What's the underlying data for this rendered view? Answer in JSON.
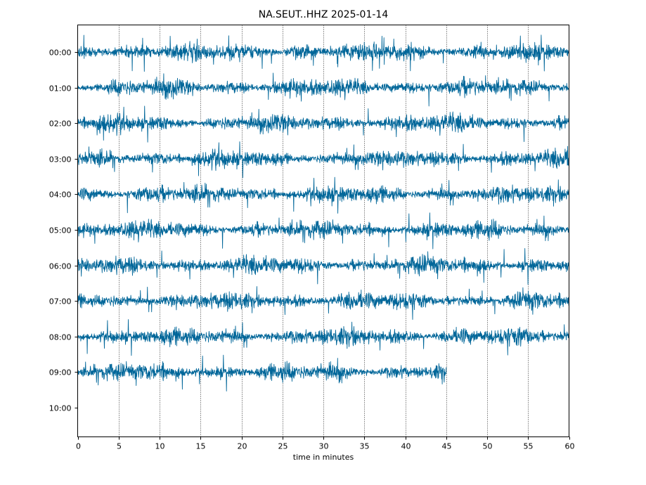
{
  "chart_data": {
    "type": "line",
    "title": "NA.SEUT..HHZ 2025-01-14",
    "xlabel": "time in minutes",
    "ylabel": "",
    "xlim": [
      0,
      60
    ],
    "x_ticks": [
      0,
      5,
      10,
      15,
      20,
      25,
      30,
      35,
      40,
      45,
      50,
      55,
      60
    ],
    "x_tick_labels": [
      "0",
      "5",
      "10",
      "15",
      "20",
      "25",
      "30",
      "35",
      "40",
      "45",
      "50",
      "55",
      "60"
    ],
    "y_tick_labels": [
      "00:00",
      "01:00",
      "02:00",
      "03:00",
      "04:00",
      "05:00",
      "06:00",
      "07:00",
      "08:00",
      "09:00",
      "10:00"
    ],
    "grid": "vertical dotted at each x tick",
    "trace_color": "#006699",
    "series": [
      {
        "hour": "00:00",
        "start_min": 0,
        "end_min": 60
      },
      {
        "hour": "01:00",
        "start_min": 0,
        "end_min": 60
      },
      {
        "hour": "02:00",
        "start_min": 0,
        "end_min": 60
      },
      {
        "hour": "03:00",
        "start_min": 0,
        "end_min": 60
      },
      {
        "hour": "04:00",
        "start_min": 0,
        "end_min": 60
      },
      {
        "hour": "05:00",
        "start_min": 0,
        "end_min": 60
      },
      {
        "hour": "06:00",
        "start_min": 0,
        "end_min": 60
      },
      {
        "hour": "07:00",
        "start_min": 0,
        "end_min": 60
      },
      {
        "hour": "08:00",
        "start_min": 0,
        "end_min": 60
      },
      {
        "hour": "09:00",
        "start_min": 0,
        "end_min": 45
      }
    ]
  }
}
